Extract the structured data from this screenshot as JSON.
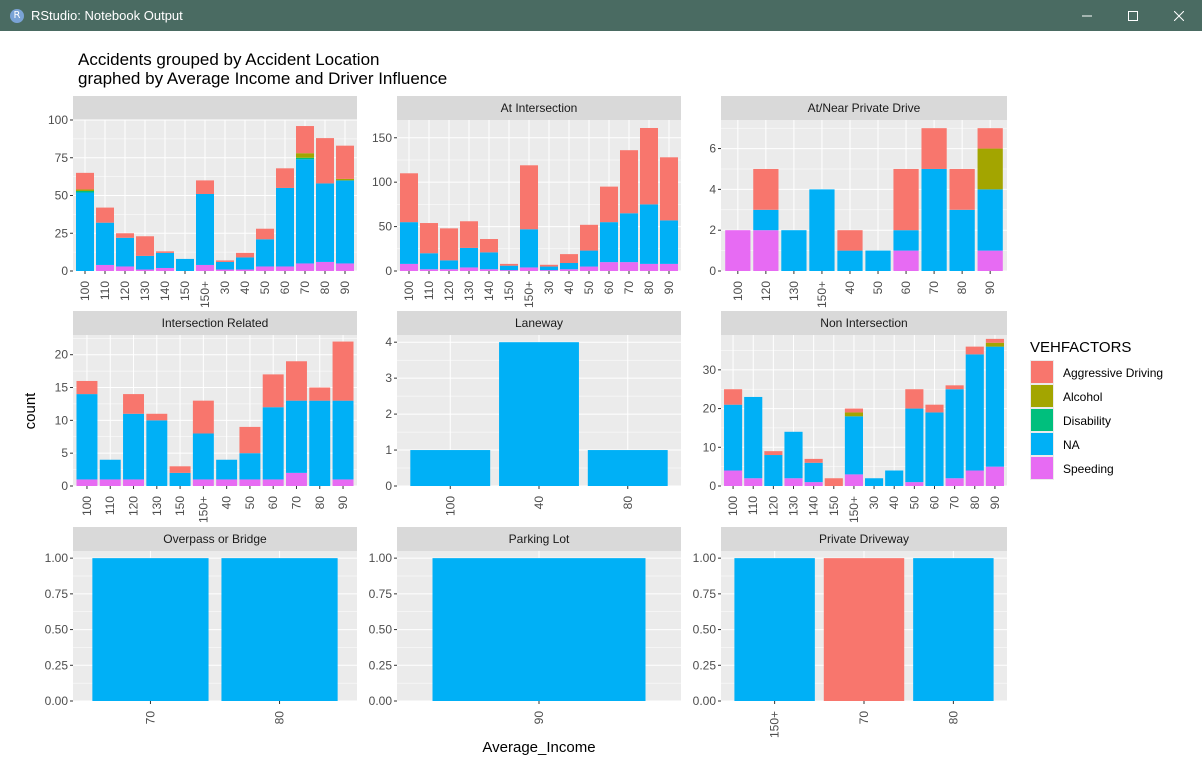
{
  "window": {
    "title": "RStudio: Notebook Output",
    "icon_letter": "R",
    "controls": [
      "minimize-icon",
      "maximize-icon",
      "close-icon"
    ]
  },
  "colors": {
    "Aggressive Driving": "#F8766D",
    "Alcohol": "#A3A500",
    "Disability": "#00BF7D",
    "NA": "#00B0F6",
    "Speeding": "#E76BF3",
    "panel_bg": "#EBEBEB",
    "strip_bg": "#D9D9D9",
    "grid": "#FFFFFF"
  },
  "chart_data": {
    "type": "bar",
    "stacked": true,
    "title": "Accidents grouped by Accident Location\ngraphed by Average Income and Driver Influence",
    "xlabel": "Average_Income",
    "ylabel": "count",
    "legend": {
      "title": "VEHFACTORS",
      "position": "right",
      "entries": [
        "Aggressive Driving",
        "Alcohol",
        "Disability",
        "NA",
        "Speeding"
      ]
    },
    "grid": true,
    "stack_order_bottom_to_top": [
      "Speeding",
      "NA",
      "Disability",
      "Alcohol",
      "Aggressive Driving"
    ],
    "facets": [
      {
        "strip": "",
        "ylim": [
          0,
          100
        ],
        "yticks": [
          0,
          25,
          50,
          75,
          100
        ],
        "categories": [
          "100",
          "110",
          "120",
          "130",
          "140",
          "150",
          "150+",
          "30",
          "40",
          "50",
          "60",
          "70",
          "80",
          "90"
        ],
        "series": [
          {
            "name": "Speeding",
            "values": [
              0,
              4,
              3,
              1,
              2,
              0,
              4,
              1,
              1,
              3,
              3,
              5,
              6,
              5
            ]
          },
          {
            "name": "NA",
            "values": [
              52,
              28,
              19,
              9,
              10,
              8,
              47,
              5,
              8,
              18,
              52,
              69,
              52,
              55
            ]
          },
          {
            "name": "Disability",
            "values": [
              1,
              0,
              0,
              0,
              0,
              0,
              0,
              0,
              0,
              0,
              0,
              1,
              0,
              0
            ]
          },
          {
            "name": "Alcohol",
            "values": [
              1,
              0,
              0,
              0,
              0,
              0,
              0,
              0,
              0,
              0,
              0,
              3,
              0,
              1
            ]
          },
          {
            "name": "Aggressive Driving",
            "values": [
              11,
              10,
              3,
              13,
              1,
              0,
              9,
              1,
              3,
              7,
              13,
              18,
              30,
              22
            ]
          }
        ]
      },
      {
        "strip": "At Intersection",
        "ylim": [
          0,
          170
        ],
        "yticks": [
          0,
          50,
          100,
          150
        ],
        "categories": [
          "100",
          "110",
          "120",
          "130",
          "140",
          "150",
          "150+",
          "30",
          "40",
          "50",
          "60",
          "70",
          "80",
          "90"
        ],
        "series": [
          {
            "name": "Speeding",
            "values": [
              8,
              2,
              2,
              4,
              2,
              1,
              4,
              1,
              2,
              5,
              10,
              10,
              8,
              8
            ]
          },
          {
            "name": "NA",
            "values": [
              47,
              18,
              10,
              22,
              19,
              5,
              43,
              4,
              7,
              18,
              45,
              55,
              67,
              49
            ]
          },
          {
            "name": "Disability",
            "values": [
              0,
              0,
              0,
              0,
              0,
              0,
              0,
              0,
              0,
              0,
              0,
              0,
              0,
              0
            ]
          },
          {
            "name": "Alcohol",
            "values": [
              0,
              0,
              0,
              0,
              0,
              0,
              0,
              0,
              0,
              0,
              0,
              0,
              0,
              0
            ]
          },
          {
            "name": "Aggressive Driving",
            "values": [
              55,
              34,
              36,
              30,
              15,
              2,
              72,
              2,
              10,
              29,
              40,
              71,
              86,
              71
            ]
          }
        ]
      },
      {
        "strip": "At/Near Private Drive",
        "ylim": [
          0,
          7.4
        ],
        "yticks": [
          0,
          2,
          4,
          6
        ],
        "categories": [
          "100",
          "120",
          "130",
          "150+",
          "40",
          "50",
          "60",
          "70",
          "80",
          "90"
        ],
        "series": [
          {
            "name": "Speeding",
            "values": [
              2,
              2,
              0,
              0,
              0,
              0,
              1,
              0,
              0,
              1
            ]
          },
          {
            "name": "NA",
            "values": [
              0,
              1,
              2,
              4,
              1,
              1,
              1,
              5,
              3,
              3
            ]
          },
          {
            "name": "Disability",
            "values": [
              0,
              0,
              0,
              0,
              0,
              0,
              0,
              0,
              0,
              0
            ]
          },
          {
            "name": "Alcohol",
            "values": [
              0,
              0,
              0,
              0,
              0,
              0,
              0,
              0,
              0,
              2
            ]
          },
          {
            "name": "Aggressive Driving",
            "values": [
              0,
              2,
              0,
              0,
              1,
              0,
              3,
              2,
              2,
              1
            ]
          }
        ]
      },
      {
        "strip": "Intersection Related",
        "ylim": [
          0,
          23
        ],
        "yticks": [
          0,
          5,
          10,
          15,
          20
        ],
        "categories": [
          "100",
          "110",
          "120",
          "130",
          "150",
          "150+",
          "40",
          "50",
          "60",
          "70",
          "80",
          "90"
        ],
        "series": [
          {
            "name": "Speeding",
            "values": [
              1,
              1,
              1,
              0,
              0,
              1,
              1,
              1,
              1,
              2,
              0,
              1
            ]
          },
          {
            "name": "NA",
            "values": [
              13,
              3,
              10,
              10,
              2,
              7,
              3,
              4,
              11,
              11,
              13,
              12
            ]
          },
          {
            "name": "Disability",
            "values": [
              0,
              0,
              0,
              0,
              0,
              0,
              0,
              0,
              0,
              0,
              0,
              0
            ]
          },
          {
            "name": "Alcohol",
            "values": [
              0,
              0,
              0,
              0,
              0,
              0,
              0,
              0,
              0,
              0,
              0,
              0
            ]
          },
          {
            "name": "Aggressive Driving",
            "values": [
              2,
              0,
              3,
              1,
              1,
              5,
              0,
              4,
              5,
              6,
              2,
              9
            ]
          }
        ]
      },
      {
        "strip": "Laneway",
        "ylim": [
          0,
          4.2
        ],
        "yticks": [
          0,
          1,
          2,
          3,
          4
        ],
        "categories": [
          "100",
          "40",
          "80"
        ],
        "series": [
          {
            "name": "Speeding",
            "values": [
              0,
              0,
              0
            ]
          },
          {
            "name": "NA",
            "values": [
              1,
              4,
              1
            ]
          },
          {
            "name": "Disability",
            "values": [
              0,
              0,
              0
            ]
          },
          {
            "name": "Alcohol",
            "values": [
              0,
              0,
              0
            ]
          },
          {
            "name": "Aggressive Driving",
            "values": [
              0,
              0,
              0
            ]
          }
        ]
      },
      {
        "strip": "Non Intersection",
        "ylim": [
          0,
          39
        ],
        "yticks": [
          0,
          10,
          20,
          30
        ],
        "categories": [
          "100",
          "110",
          "120",
          "130",
          "140",
          "150",
          "150+",
          "30",
          "40",
          "50",
          "60",
          "70",
          "80",
          "90"
        ],
        "series": [
          {
            "name": "Speeding",
            "values": [
              4,
              2,
              0,
              2,
              1,
              0,
              3,
              0,
              0,
              1,
              0,
              2,
              4,
              5
            ]
          },
          {
            "name": "NA",
            "values": [
              17,
              21,
              8,
              12,
              5,
              0,
              15,
              2,
              4,
              19,
              19,
              23,
              30,
              31
            ]
          },
          {
            "name": "Disability",
            "values": [
              0,
              0,
              0,
              0,
              0,
              0,
              0,
              0,
              0,
              0,
              0,
              0,
              0,
              0
            ]
          },
          {
            "name": "Alcohol",
            "values": [
              0,
              0,
              0,
              0,
              0,
              0,
              1,
              0,
              0,
              0,
              0,
              0,
              0,
              1
            ]
          },
          {
            "name": "Aggressive Driving",
            "values": [
              4,
              0,
              1,
              0,
              1,
              2,
              1,
              0,
              0,
              5,
              2,
              1,
              2,
              1
            ]
          }
        ]
      },
      {
        "strip": "Overpass or Bridge",
        "ylim": [
          0,
          1.05
        ],
        "yticks": [
          0,
          0.25,
          0.5,
          0.75,
          1
        ],
        "categories": [
          "70",
          "80"
        ],
        "series": [
          {
            "name": "Speeding",
            "values": [
              0,
              0
            ]
          },
          {
            "name": "NA",
            "values": [
              1,
              1
            ]
          },
          {
            "name": "Disability",
            "values": [
              0,
              0
            ]
          },
          {
            "name": "Alcohol",
            "values": [
              0,
              0
            ]
          },
          {
            "name": "Aggressive Driving",
            "values": [
              0,
              0
            ]
          }
        ]
      },
      {
        "strip": "Parking Lot",
        "ylim": [
          0,
          1.05
        ],
        "yticks": [
          0,
          0.25,
          0.5,
          0.75,
          1
        ],
        "categories": [
          "90"
        ],
        "series": [
          {
            "name": "Speeding",
            "values": [
              0
            ]
          },
          {
            "name": "NA",
            "values": [
              1
            ]
          },
          {
            "name": "Disability",
            "values": [
              0
            ]
          },
          {
            "name": "Alcohol",
            "values": [
              0
            ]
          },
          {
            "name": "Aggressive Driving",
            "values": [
              0
            ]
          }
        ]
      },
      {
        "strip": "Private Driveway",
        "ylim": [
          0,
          1.05
        ],
        "yticks": [
          0,
          0.25,
          0.5,
          0.75,
          1
        ],
        "categories": [
          "150+",
          "70",
          "80"
        ],
        "series": [
          {
            "name": "Speeding",
            "values": [
              0,
              0,
              0
            ]
          },
          {
            "name": "NA",
            "values": [
              1,
              0,
              1
            ]
          },
          {
            "name": "Disability",
            "values": [
              0,
              0,
              0
            ]
          },
          {
            "name": "Alcohol",
            "values": [
              0,
              0,
              0
            ]
          },
          {
            "name": "Aggressive Driving",
            "values": [
              0,
              1,
              0
            ]
          }
        ]
      }
    ]
  }
}
